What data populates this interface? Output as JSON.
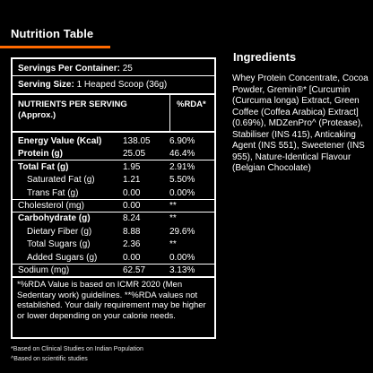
{
  "nutrition_table": {
    "title": "Nutrition Table",
    "servings_per_container_label": "Servings Per Container:",
    "servings_per_container_value": "25",
    "serving_size_label": "Serving Size:",
    "serving_size_value": "1 Heaped Scoop (36g)",
    "header_label_line1": "NUTRIENTS PER SERVING",
    "header_label_line2": "(Approx.)",
    "header_rda": "%RDA*",
    "rows": [
      {
        "name": "Energy Value (Kcal)",
        "value": "138.05",
        "rda": "6.90%"
      },
      {
        "name": "Protein (g)",
        "value": "25.05",
        "rda": "46.4%"
      },
      {
        "name": "Total Fat (g)",
        "value": "1.95",
        "rda": "2.91%"
      },
      {
        "name": "Saturated Fat (g)",
        "value": "1.21",
        "rda": "5.50%"
      },
      {
        "name": "Trans Fat (g)",
        "value": "0.00",
        "rda": "0.00%"
      },
      {
        "name": "Cholesterol (mg)",
        "value": "0.00",
        "rda": "**"
      },
      {
        "name": "Carbohydrate (g)",
        "value": "8.24",
        "rda": "**"
      },
      {
        "name": "Dietary Fiber (g)",
        "value": "8.88",
        "rda": "29.6%"
      },
      {
        "name": "Total Sugars (g)",
        "value": "2.36",
        "rda": "**"
      },
      {
        "name": "Added Sugars (g)",
        "value": "0.00",
        "rda": "0.00%"
      },
      {
        "name": "Sodium (mg)",
        "value": "62.57",
        "rda": "3.13%"
      }
    ],
    "footnote_text": "*%RDA Value is based on ICMR 2020 (Men Sedentary work) guidelines. **%RDA values not established. Your daily requirement may be higher or lower depending on your calorie needs."
  },
  "footnotes": {
    "line1": "*Based on Clinical Studies on Indian Population",
    "line2": "^Based on scientific studies"
  },
  "ingredients": {
    "title": "Ingredients",
    "text": "Whey Protein Concentrate, Cocoa Powder, Gremin®* [Curcumin (Curcuma longa) Extract, Green Coffee (Coffea Arabica) Extract] (0.69%), MDZenPro^ (Protease), Stabiliser (INS 415), Anticaking Agent (INS 551), Sweetener (INS 955), Nature-Identical Flavour (Belgian Chocolate)"
  },
  "colors": {
    "accent": "#ff6a00",
    "background": "#000000",
    "text": "#ffffff"
  }
}
